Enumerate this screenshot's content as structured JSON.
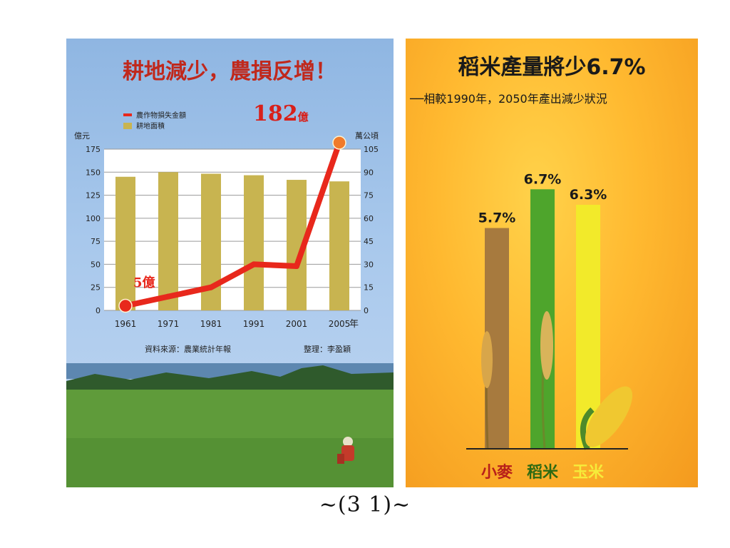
{
  "page_number": "~(3 1)~",
  "chart_data": [
    {
      "type": "bar",
      "title": "耕地減少，農損反增！",
      "legend": [
        "農作物損失金額",
        "耕地面積"
      ],
      "legend_position": "top-left",
      "y_left_unit": "億元",
      "y_right_unit": "萬公頃",
      "x_unit": "年",
      "categories": [
        "1961",
        "1971",
        "1981",
        "1991",
        "2001",
        "2005"
      ],
      "y_left_ticks": [
        "0",
        "25",
        "50",
        "75",
        "100",
        "125",
        "150",
        "175"
      ],
      "y_right_ticks": [
        "0",
        "15",
        "30",
        "45",
        "60",
        "75",
        "90",
        "105"
      ],
      "ylim_left": [
        0,
        175
      ],
      "ylim_right": [
        0,
        105
      ],
      "grid": true,
      "series": [
        {
          "name": "耕地面積",
          "type": "bar",
          "axis": "right",
          "color": "#c8b450",
          "values": [
            87,
            90,
            89,
            88,
            85,
            84
          ]
        },
        {
          "name": "農作物損失金額",
          "type": "line",
          "axis": "left",
          "color": "#e8281c",
          "values": [
            5,
            15,
            25,
            50,
            48,
            182
          ]
        }
      ],
      "annotations": {
        "start": "5億",
        "end_value": "182",
        "end_unit": "億"
      },
      "source": "資料來源：農業統計年報",
      "editor": "整理：李盈穎"
    },
    {
      "type": "bar",
      "title": "稻米產量將少6.7%",
      "subtitle": "──相較1990年，2050年產出減少狀況",
      "categories": [
        "小麥",
        "稻米",
        "玉米"
      ],
      "values": [
        5.7,
        6.7,
        6.3
      ],
      "labels": [
        "5.7%",
        "6.7%",
        "6.3%"
      ],
      "colors": [
        "#a77a3e",
        "#4ea52c",
        "#f2ea2a"
      ],
      "category_colors": [
        "#b8201a",
        "#2e6a12",
        "#f6ec3a"
      ],
      "ylim": [
        0,
        7
      ]
    }
  ]
}
